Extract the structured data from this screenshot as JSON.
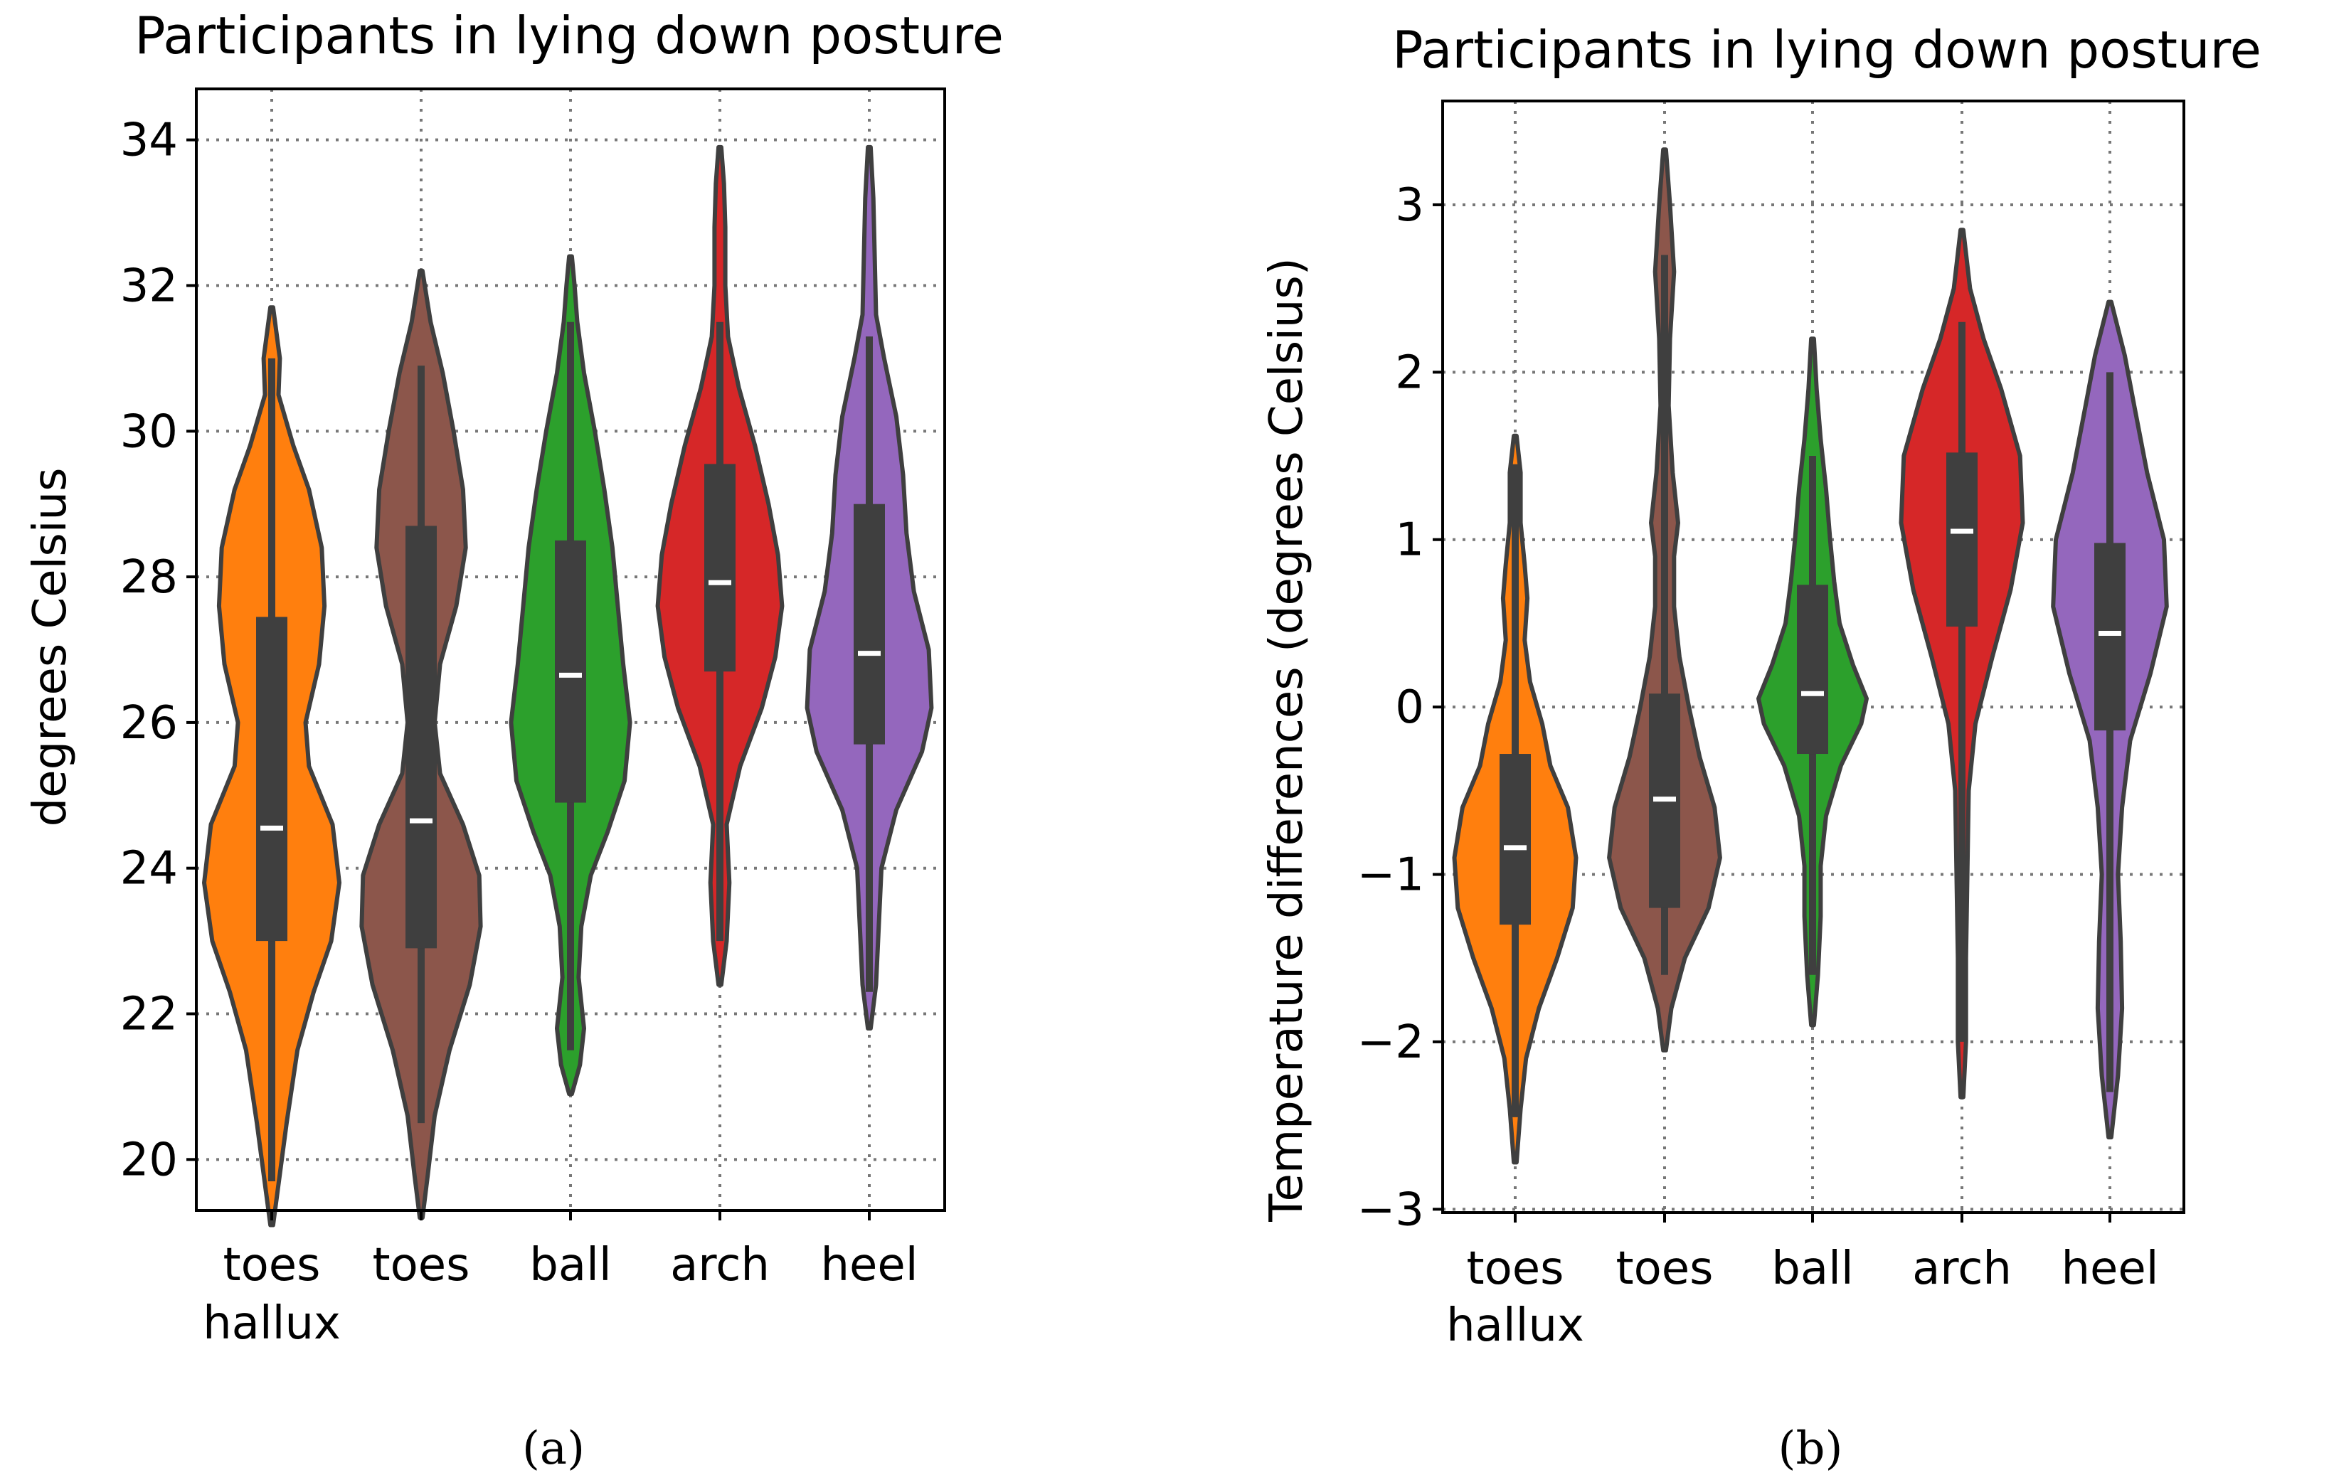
{
  "figure": {
    "caption_a": "(a)",
    "caption_b": "(b)"
  },
  "chart_data": [
    {
      "type": "violin",
      "title": "Participants in lying down posture",
      "xlabel": "",
      "ylabel": "degrees Celsius",
      "ylim": [
        19.3,
        34.7
      ],
      "yticks": [
        20,
        22,
        24,
        26,
        28,
        30,
        32,
        34
      ],
      "grid": true,
      "legend": "none",
      "categories": [
        {
          "line1": "toes",
          "line2": "hallux"
        },
        {
          "line1": "toes",
          "line2": ""
        },
        {
          "line1": "ball",
          "line2": ""
        },
        {
          "line1": "arch",
          "line2": ""
        },
        {
          "line1": "heel",
          "line2": ""
        }
      ],
      "colors": [
        "#ff7f0e",
        "#8c564b",
        "#2ca02c",
        "#d62728",
        "#9467bd"
      ],
      "series": [
        {
          "name": "toes hallux",
          "min": 19.1,
          "max": 31.7,
          "q1": 23.0,
          "median": 24.55,
          "q3": 27.45,
          "whisker_low": 19.7,
          "whisker_high": 31.0,
          "density": [
            [
              19.1,
              0.02
            ],
            [
              19.8,
              0.12
            ],
            [
              20.5,
              0.22
            ],
            [
              21.5,
              0.38
            ],
            [
              22.3,
              0.62
            ],
            [
              23.0,
              0.88
            ],
            [
              23.8,
              1.0
            ],
            [
              24.6,
              0.9
            ],
            [
              25.4,
              0.55
            ],
            [
              26.0,
              0.5
            ],
            [
              26.8,
              0.7
            ],
            [
              27.6,
              0.78
            ],
            [
              28.4,
              0.74
            ],
            [
              29.2,
              0.55
            ],
            [
              29.8,
              0.32
            ],
            [
              30.5,
              0.1
            ],
            [
              31.0,
              0.12
            ],
            [
              31.7,
              0.02
            ]
          ]
        },
        {
          "name": "toes",
          "min": 19.2,
          "max": 32.2,
          "q1": 22.9,
          "median": 24.65,
          "q3": 28.7,
          "whisker_low": 20.5,
          "whisker_high": 30.9,
          "density": [
            [
              19.2,
              0.02
            ],
            [
              19.8,
              0.1
            ],
            [
              20.6,
              0.2
            ],
            [
              21.5,
              0.42
            ],
            [
              22.4,
              0.72
            ],
            [
              23.2,
              0.88
            ],
            [
              23.9,
              0.86
            ],
            [
              24.6,
              0.62
            ],
            [
              25.3,
              0.28
            ],
            [
              26.0,
              0.2
            ],
            [
              26.8,
              0.28
            ],
            [
              27.6,
              0.52
            ],
            [
              28.4,
              0.66
            ],
            [
              29.2,
              0.62
            ],
            [
              30.0,
              0.48
            ],
            [
              30.8,
              0.32
            ],
            [
              31.5,
              0.14
            ],
            [
              32.2,
              0.02
            ]
          ]
        },
        {
          "name": "ball",
          "min": 20.9,
          "max": 32.4,
          "q1": 24.9,
          "median": 26.65,
          "q3": 28.5,
          "whisker_low": 21.5,
          "whisker_high": 31.5,
          "density": [
            [
              20.9,
              0.02
            ],
            [
              21.3,
              0.14
            ],
            [
              21.8,
              0.2
            ],
            [
              22.5,
              0.12
            ],
            [
              23.2,
              0.16
            ],
            [
              23.9,
              0.3
            ],
            [
              24.5,
              0.55
            ],
            [
              25.2,
              0.8
            ],
            [
              26.0,
              0.88
            ],
            [
              26.8,
              0.78
            ],
            [
              27.6,
              0.7
            ],
            [
              28.4,
              0.62
            ],
            [
              29.2,
              0.5
            ],
            [
              30.0,
              0.36
            ],
            [
              30.8,
              0.2
            ],
            [
              31.5,
              0.1
            ],
            [
              32.0,
              0.06
            ],
            [
              32.4,
              0.02
            ]
          ]
        },
        {
          "name": "arch",
          "min": 22.4,
          "max": 33.9,
          "q1": 26.7,
          "median": 27.92,
          "q3": 29.55,
          "whisker_low": 23.0,
          "whisker_high": 31.5,
          "density": [
            [
              22.4,
              0.02
            ],
            [
              23.0,
              0.1
            ],
            [
              23.8,
              0.14
            ],
            [
              24.6,
              0.1
            ],
            [
              25.4,
              0.3
            ],
            [
              26.2,
              0.62
            ],
            [
              26.9,
              0.82
            ],
            [
              27.6,
              0.92
            ],
            [
              28.3,
              0.86
            ],
            [
              29.0,
              0.72
            ],
            [
              29.8,
              0.52
            ],
            [
              30.6,
              0.28
            ],
            [
              31.3,
              0.12
            ],
            [
              32.0,
              0.08
            ],
            [
              32.8,
              0.08
            ],
            [
              33.4,
              0.06
            ],
            [
              33.9,
              0.02
            ]
          ]
        },
        {
          "name": "heel",
          "min": 21.8,
          "max": 33.9,
          "q1": 25.7,
          "median": 26.95,
          "q3": 29.0,
          "whisker_low": 22.3,
          "whisker_high": 31.3,
          "density": [
            [
              21.8,
              0.02
            ],
            [
              22.4,
              0.1
            ],
            [
              23.2,
              0.14
            ],
            [
              24.0,
              0.18
            ],
            [
              24.8,
              0.4
            ],
            [
              25.6,
              0.78
            ],
            [
              26.2,
              0.92
            ],
            [
              27.0,
              0.88
            ],
            [
              27.8,
              0.66
            ],
            [
              28.6,
              0.55
            ],
            [
              29.4,
              0.5
            ],
            [
              30.2,
              0.4
            ],
            [
              31.0,
              0.22
            ],
            [
              31.6,
              0.1
            ],
            [
              32.4,
              0.08
            ],
            [
              33.2,
              0.06
            ],
            [
              33.9,
              0.02
            ]
          ]
        }
      ]
    },
    {
      "type": "violin",
      "title": "Participants in lying down posture",
      "xlabel": "",
      "ylabel": "Temperature differences (degrees Celsius)",
      "ylim": [
        -3.02,
        3.62
      ],
      "yticks": [
        -3,
        -2,
        -1,
        0,
        1,
        2,
        3
      ],
      "grid": true,
      "legend": "none",
      "categories": [
        {
          "line1": "toes",
          "line2": "hallux"
        },
        {
          "line1": "toes",
          "line2": ""
        },
        {
          "line1": "ball",
          "line2": ""
        },
        {
          "line1": "arch",
          "line2": ""
        },
        {
          "line1": "heel",
          "line2": ""
        }
      ],
      "colors": [
        "#ff7f0e",
        "#8c564b",
        "#2ca02c",
        "#d62728",
        "#9467bd"
      ],
      "series": [
        {
          "name": "toes hallux",
          "min": -2.72,
          "max": 1.62,
          "q1": -1.3,
          "median": -0.84,
          "q3": -0.28,
          "whisker_low": -2.45,
          "whisker_high": 1.45,
          "density": [
            [
              -2.72,
              0.02
            ],
            [
              -2.4,
              0.08
            ],
            [
              -2.1,
              0.16
            ],
            [
              -1.8,
              0.35
            ],
            [
              -1.5,
              0.62
            ],
            [
              -1.2,
              0.85
            ],
            [
              -0.9,
              0.9
            ],
            [
              -0.6,
              0.78
            ],
            [
              -0.35,
              0.52
            ],
            [
              -0.1,
              0.4
            ],
            [
              0.15,
              0.22
            ],
            [
              0.4,
              0.14
            ],
            [
              0.65,
              0.18
            ],
            [
              0.85,
              0.14
            ],
            [
              1.1,
              0.08
            ],
            [
              1.4,
              0.08
            ],
            [
              1.62,
              0.02
            ]
          ]
        },
        {
          "name": "toes",
          "min": -2.05,
          "max": 3.33,
          "q1": -1.2,
          "median": -0.55,
          "q3": 0.08,
          "whisker_low": -1.6,
          "whisker_high": 2.7,
          "density": [
            [
              -2.05,
              0.02
            ],
            [
              -1.8,
              0.1
            ],
            [
              -1.5,
              0.3
            ],
            [
              -1.2,
              0.65
            ],
            [
              -0.9,
              0.82
            ],
            [
              -0.6,
              0.74
            ],
            [
              -0.3,
              0.52
            ],
            [
              0.0,
              0.36
            ],
            [
              0.3,
              0.22
            ],
            [
              0.6,
              0.14
            ],
            [
              0.9,
              0.14
            ],
            [
              1.1,
              0.2
            ],
            [
              1.4,
              0.12
            ],
            [
              1.8,
              0.06
            ],
            [
              2.2,
              0.08
            ],
            [
              2.6,
              0.14
            ],
            [
              3.0,
              0.08
            ],
            [
              3.33,
              0.02
            ]
          ]
        },
        {
          "name": "ball",
          "min": -1.9,
          "max": 2.2,
          "q1": -0.28,
          "median": 0.08,
          "q3": 0.73,
          "whisker_low": -1.6,
          "whisker_high": 1.5,
          "density": [
            [
              -1.9,
              0.02
            ],
            [
              -1.6,
              0.08
            ],
            [
              -1.25,
              0.12
            ],
            [
              -0.95,
              0.12
            ],
            [
              -0.65,
              0.2
            ],
            [
              -0.35,
              0.42
            ],
            [
              -0.1,
              0.72
            ],
            [
              0.05,
              0.8
            ],
            [
              0.25,
              0.6
            ],
            [
              0.5,
              0.4
            ],
            [
              0.75,
              0.32
            ],
            [
              1.0,
              0.26
            ],
            [
              1.3,
              0.2
            ],
            [
              1.6,
              0.12
            ],
            [
              1.9,
              0.06
            ],
            [
              2.2,
              0.02
            ]
          ]
        },
        {
          "name": "arch",
          "min": -2.33,
          "max": 2.85,
          "q1": 0.48,
          "median": 1.05,
          "q3": 1.52,
          "whisker_low": -2.0,
          "whisker_high": 2.3,
          "density": [
            [
              -2.33,
              0.02
            ],
            [
              -2.0,
              0.06
            ],
            [
              -1.5,
              0.06
            ],
            [
              -1.0,
              0.08
            ],
            [
              -0.5,
              0.1
            ],
            [
              -0.1,
              0.2
            ],
            [
              0.3,
              0.45
            ],
            [
              0.7,
              0.72
            ],
            [
              1.1,
              0.9
            ],
            [
              1.5,
              0.86
            ],
            [
              1.9,
              0.58
            ],
            [
              2.2,
              0.32
            ],
            [
              2.5,
              0.12
            ],
            [
              2.85,
              0.02
            ]
          ]
        },
        {
          "name": "heel",
          "min": -2.57,
          "max": 2.42,
          "q1": -0.14,
          "median": 0.44,
          "q3": 0.98,
          "whisker_low": -2.3,
          "whisker_high": 2.0,
          "density": [
            [
              -2.57,
              0.02
            ],
            [
              -2.2,
              0.12
            ],
            [
              -1.8,
              0.18
            ],
            [
              -1.4,
              0.16
            ],
            [
              -1.0,
              0.12
            ],
            [
              -0.6,
              0.18
            ],
            [
              -0.2,
              0.3
            ],
            [
              0.2,
              0.6
            ],
            [
              0.6,
              0.84
            ],
            [
              1.0,
              0.8
            ],
            [
              1.4,
              0.55
            ],
            [
              1.8,
              0.36
            ],
            [
              2.1,
              0.22
            ],
            [
              2.42,
              0.02
            ]
          ]
        }
      ]
    }
  ]
}
